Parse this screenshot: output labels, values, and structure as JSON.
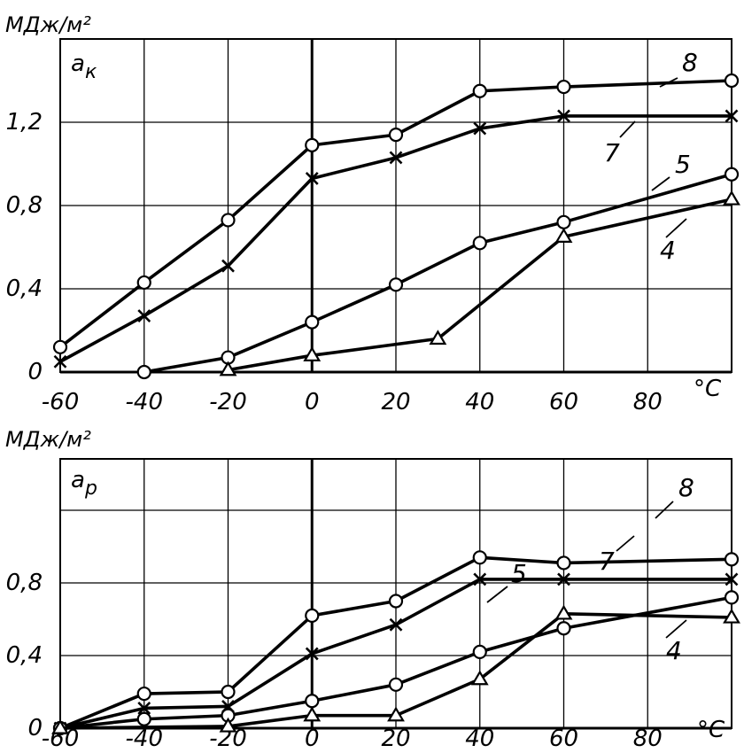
{
  "chart_data": [
    {
      "type": "line",
      "panel_label": "a",
      "panel_label_sub": "к",
      "unit_label": "МДж/м²",
      "x_unit_label": "°C",
      "x_tick_labels": [
        "-60",
        "-40",
        "-20",
        "0",
        "20",
        "40",
        "60",
        "80"
      ],
      "y_tick_labels": [
        "0",
        "0,4",
        "0,8",
        "1,2"
      ],
      "xlim": [
        -60,
        100
      ],
      "ylim": [
        0,
        1.6
      ],
      "grid": true,
      "series": [
        {
          "name": "8",
          "marker": "circle",
          "x": [
            -60,
            -40,
            -20,
            0,
            20,
            40,
            60,
            100
          ],
          "y": [
            0.12,
            0.43,
            0.73,
            1.09,
            1.14,
            1.35,
            1.37,
            1.4
          ]
        },
        {
          "name": "7",
          "marker": "x",
          "x": [
            -60,
            -40,
            -20,
            0,
            20,
            40,
            60,
            100
          ],
          "y": [
            0.05,
            0.27,
            0.51,
            0.93,
            1.03,
            1.17,
            1.23,
            1.23
          ]
        },
        {
          "name": "5",
          "marker": "circle",
          "x": [
            -40,
            -20,
            0,
            20,
            40,
            60,
            100
          ],
          "y": [
            0.0,
            0.07,
            0.24,
            0.42,
            0.62,
            0.72,
            0.95
          ]
        },
        {
          "name": "4",
          "marker": "triangle",
          "x": [
            -20,
            0,
            30,
            60,
            100
          ],
          "y": [
            0.01,
            0.08,
            0.16,
            0.65,
            0.83
          ]
        }
      ]
    },
    {
      "type": "line",
      "panel_label": "a",
      "panel_label_sub": "р",
      "unit_label": "МДж/м²",
      "x_unit_label": "°C",
      "x_tick_labels": [
        "-60",
        "-40",
        "-20",
        "0",
        "20",
        "40",
        "60",
        "80"
      ],
      "y_tick_labels": [
        "0",
        "0,4",
        "0,8"
      ],
      "xlim": [
        -60,
        100
      ],
      "ylim": [
        0,
        1.2
      ],
      "grid": true,
      "series": [
        {
          "name": "8",
          "marker": "circle",
          "x": [
            -60,
            -40,
            -20,
            0,
            20,
            40,
            60,
            100
          ],
          "y": [
            0.0,
            0.19,
            0.2,
            0.62,
            0.7,
            0.94,
            0.91,
            0.93
          ]
        },
        {
          "name": "7",
          "marker": "x",
          "x": [
            -60,
            -40,
            -20,
            0,
            20,
            40,
            60,
            100
          ],
          "y": [
            0.0,
            0.11,
            0.12,
            0.41,
            0.57,
            0.82,
            0.82,
            0.82
          ]
        },
        {
          "name": "5",
          "marker": "circle",
          "x": [
            -60,
            -40,
            -20,
            0,
            20,
            40,
            60,
            100
          ],
          "y": [
            0.0,
            0.05,
            0.07,
            0.15,
            0.24,
            0.42,
            0.55,
            0.72
          ]
        },
        {
          "name": "4",
          "marker": "triangle",
          "x": [
            -60,
            -20,
            0,
            20,
            40,
            60,
            100
          ],
          "y": [
            0.0,
            0.01,
            0.07,
            0.07,
            0.27,
            0.63,
            0.61
          ]
        }
      ]
    }
  ]
}
